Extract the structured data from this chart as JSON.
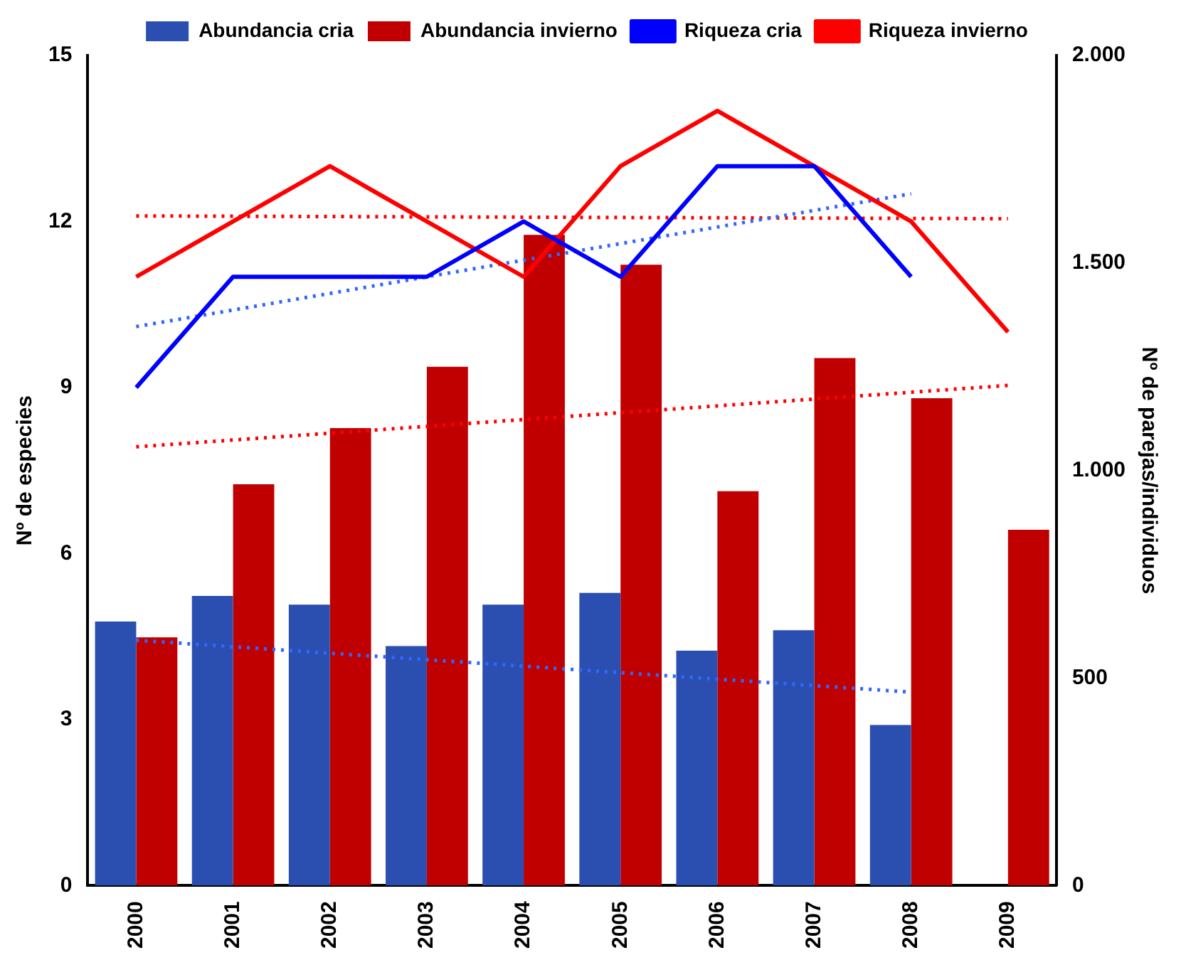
{
  "chart_data": {
    "type": "bar",
    "categories": [
      "2000",
      "2001",
      "2002",
      "2003",
      "2004",
      "2005",
      "2006",
      "2007",
      "2008",
      "2009"
    ],
    "ylabel": "Nº de especies",
    "y2label": "Nº de parejas/individuos",
    "ylim": [
      0,
      15
    ],
    "yticks": [
      0,
      3,
      6,
      9,
      12,
      15
    ],
    "y2lim": [
      0,
      2000
    ],
    "y2ticks": [
      0,
      {
        "value": 500,
        "label": "500"
      },
      {
        "value": 1000,
        "label": "1.000"
      },
      {
        "value": 1500,
        "label": "1.500"
      },
      {
        "value": 2000,
        "label": "2.000"
      }
    ],
    "grid": false,
    "legend": "top",
    "marker": "none",
    "series": [
      {
        "name": "Abundancia cria",
        "axis": "y2",
        "color": "#2a4fb0",
        "values": [
          636,
          698,
          677,
          577,
          677,
          705,
          566,
          615,
          387,
          null
        ]
      },
      {
        "name": "Abundancia invierno",
        "axis": "y2",
        "color": "#c00000",
        "values": [
          598,
          967,
          1102,
          1250,
          1568,
          1496,
          950,
          1271,
          1174,
          857
        ]
      },
      {
        "name": "Riqueza cria",
        "type": "line",
        "color": "#0000ff",
        "line_style": "solid",
        "values": [
          9,
          11,
          11,
          11,
          12,
          11,
          13,
          13,
          11,
          null
        ]
      },
      {
        "name": "Riqueza invierno",
        "type": "line",
        "color": "#ff0000",
        "line_style": "solid",
        "values": [
          11,
          12,
          13,
          12,
          11,
          13,
          14,
          13,
          12,
          10
        ]
      },
      {
        "type": "line",
        "color": "#3366ff",
        "line_style": "dotted",
        "values": [
          10.1,
          null,
          null,
          null,
          null,
          null,
          null,
          null,
          12.5,
          null
        ]
      },
      {
        "type": "line",
        "color": "#ff0000",
        "line_style": "dotted",
        "values": [
          12.1,
          null,
          null,
          null,
          null,
          null,
          null,
          null,
          null,
          12.05
        ]
      },
      {
        "type": "line",
        "axis": "y2",
        "color": "#ff0000",
        "line_style": "dotted",
        "values": [
          1057,
          null,
          null,
          null,
          null,
          null,
          null,
          null,
          null,
          1205
        ]
      },
      {
        "type": "line",
        "axis": "y2",
        "color": "#3366ff",
        "line_style": "dotted",
        "values": [
          591,
          null,
          null,
          null,
          null,
          null,
          null,
          null,
          466,
          null
        ]
      }
    ]
  }
}
